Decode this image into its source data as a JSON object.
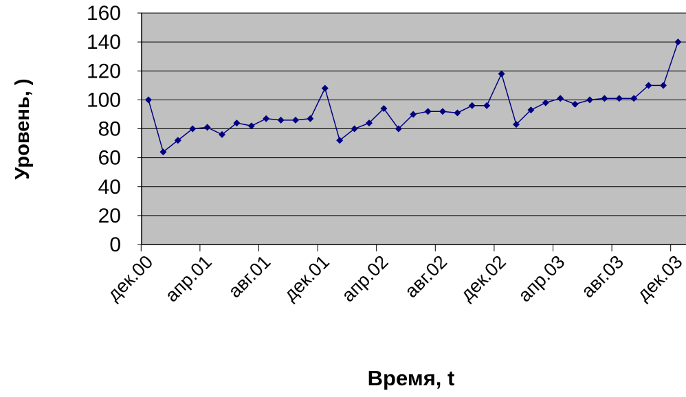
{
  "chart_data": {
    "type": "line",
    "xlabel": "Время, t",
    "ylabel": "Уровень, )",
    "ylim": [
      0,
      160
    ],
    "yticks": [
      "0",
      "20",
      "40",
      "60",
      "80",
      "100",
      "120",
      "140",
      "160"
    ],
    "x_tick_labels": [
      "дек.00",
      "апр.01",
      "авг.01",
      "дек.01",
      "апр.02",
      "авг.02",
      "дек.02",
      "апр.03",
      "авг.03",
      "дек.03"
    ],
    "grid": "horizontal",
    "plot_background": "#c0c0c0",
    "series": [
      {
        "color": "#000080",
        "values": [
          100,
          64,
          72,
          80,
          81,
          76,
          84,
          82,
          87,
          86,
          86,
          87,
          108,
          72,
          80,
          84,
          94,
          80,
          90,
          92,
          92,
          91,
          96,
          96,
          118,
          83,
          93,
          98,
          101,
          97,
          100,
          101,
          101,
          101,
          110,
          110,
          140
        ]
      }
    ]
  }
}
